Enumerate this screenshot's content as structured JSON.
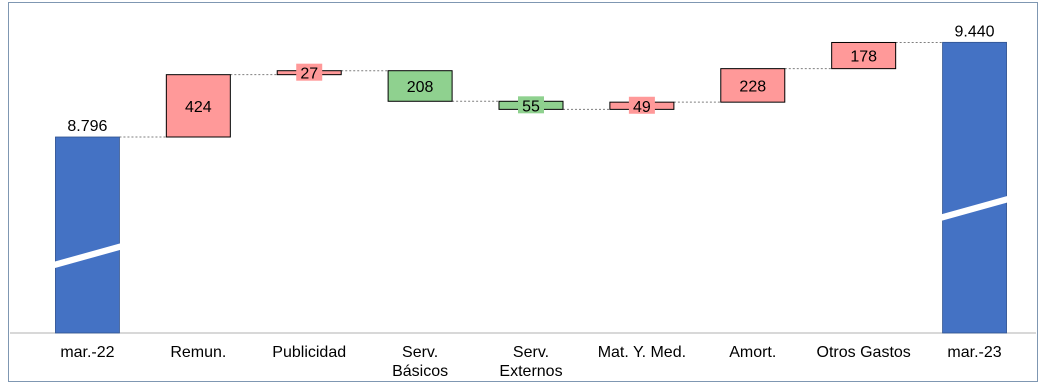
{
  "chart_data": {
    "type": "waterfall",
    "title": "",
    "xlabel": "",
    "ylabel": "",
    "axis_break": true,
    "grid": false,
    "legend": "none",
    "categories": [
      [
        "mar.-22"
      ],
      [
        "Remun."
      ],
      [
        "Publicidad"
      ],
      [
        "Serv.",
        "Básicos"
      ],
      [
        "Serv.",
        "Externos"
      ],
      [
        "Mat. Y. Med."
      ],
      [
        "Amort."
      ],
      [
        "Otros Gastos"
      ],
      [
        "mar.-23"
      ]
    ],
    "bars": [
      {
        "kind": "total",
        "value": 8796,
        "label": "8.796"
      },
      {
        "kind": "increase",
        "value": 424,
        "label": "424"
      },
      {
        "kind": "increase",
        "value": 27,
        "label": "27"
      },
      {
        "kind": "decrease",
        "value": 208,
        "label": "208"
      },
      {
        "kind": "decrease",
        "value": 55,
        "label": "55"
      },
      {
        "kind": "increase",
        "value": 49,
        "label": "49"
      },
      {
        "kind": "increase",
        "value": 228,
        "label": "228"
      },
      {
        "kind": "increase",
        "value": 178,
        "label": "178"
      },
      {
        "kind": "total",
        "value": 9440,
        "label": "9.440"
      }
    ],
    "colors": {
      "total": "#4472c4",
      "increase": "#ff9999",
      "decrease": "#8fd18f",
      "outline": "#000000"
    }
  }
}
